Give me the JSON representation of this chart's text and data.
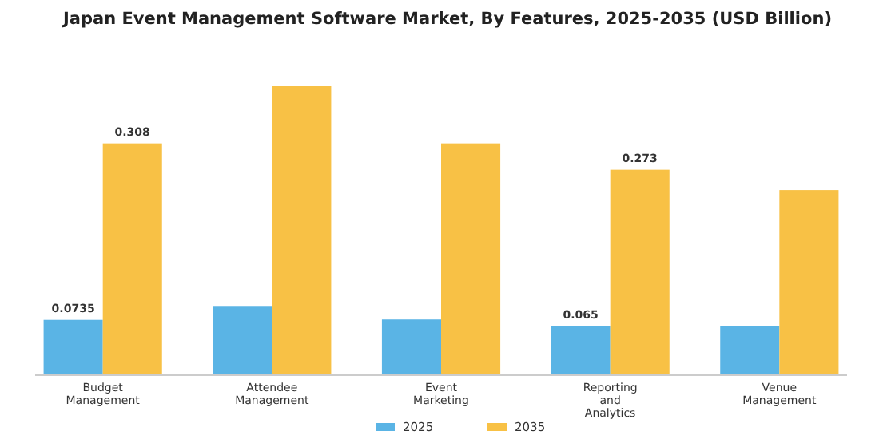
{
  "chart_data": {
    "type": "bar",
    "title": "Japan Event Management Software Market, By Features, 2025-2035 (USD Billion)",
    "categories": [
      "Budget Management",
      "Attendee Management",
      "Event Marketing",
      "Reporting and Analytics",
      "Venue Management"
    ],
    "series": [
      {
        "name": "2025",
        "color": "#5ab4e5",
        "values": [
          0.0735,
          0.092,
          0.074,
          0.065,
          0.065
        ],
        "value_labels": [
          "0.0735",
          null,
          null,
          "0.065",
          null
        ]
      },
      {
        "name": "2035",
        "color": "#f8c145",
        "values": [
          0.308,
          0.384,
          0.308,
          0.273,
          0.246
        ],
        "value_labels": [
          "0.308",
          null,
          null,
          "0.273",
          null
        ]
      }
    ],
    "tick_labels": "x",
    "legend": "bottom",
    "grid": false
  }
}
